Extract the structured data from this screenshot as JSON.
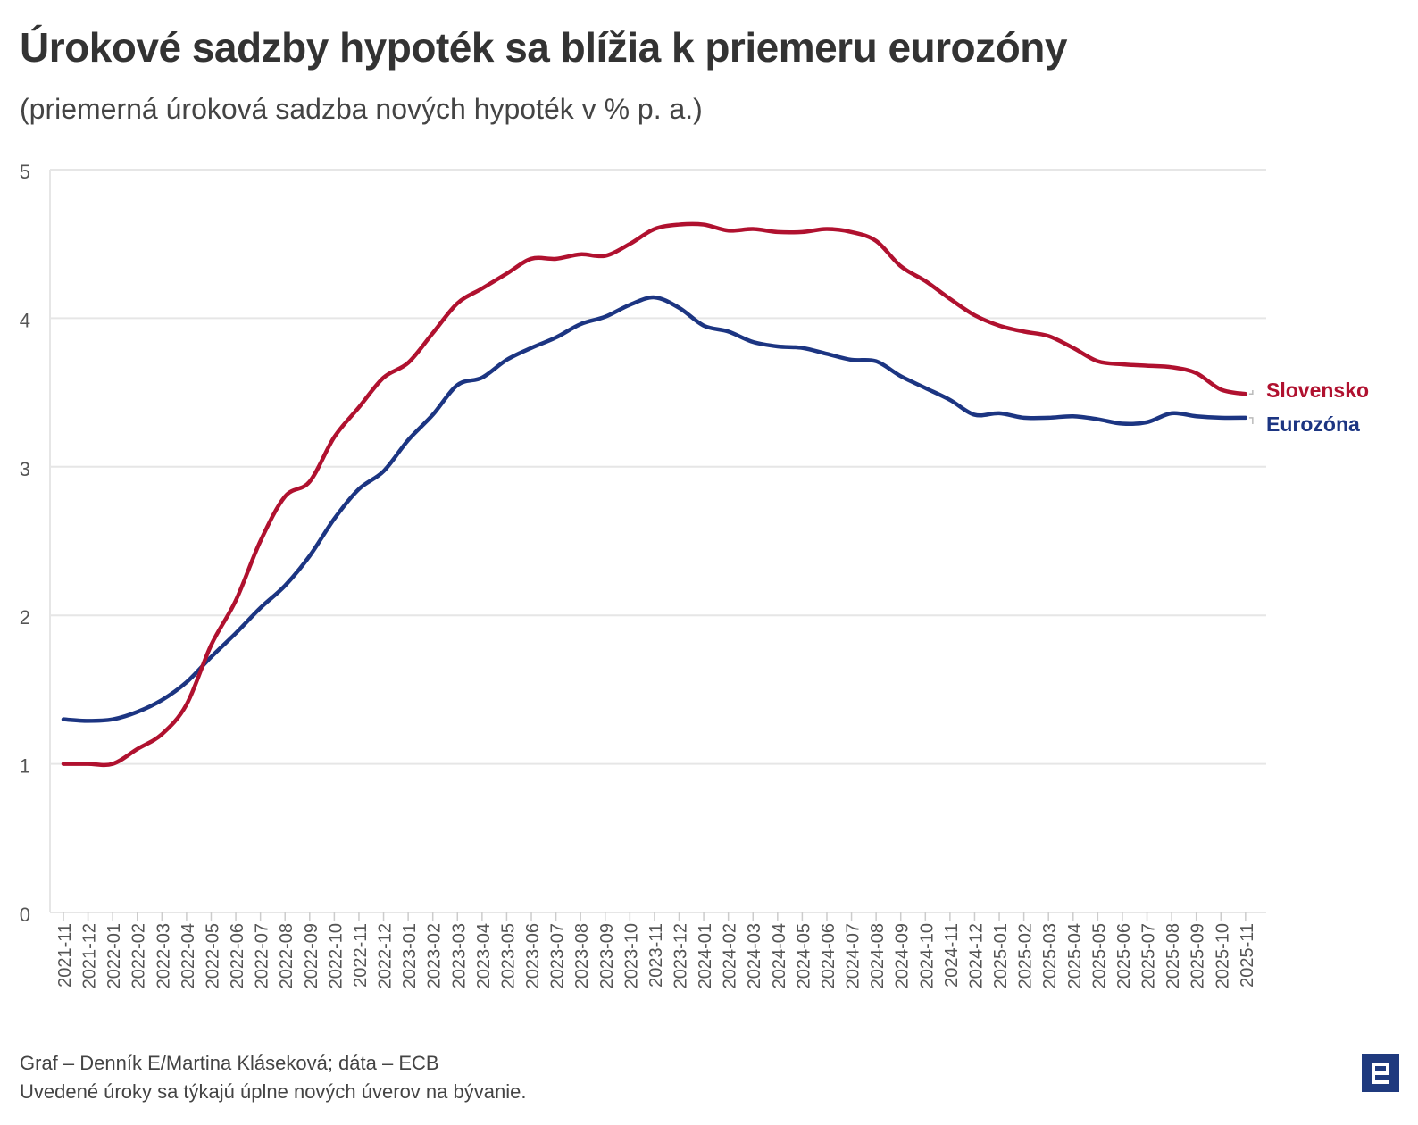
{
  "title": "Úrokové sadzby hypoték sa blížia k priemeru eurozóny",
  "subtitle": "(priemerná úroková sadzba nových hypoték v % p. a.)",
  "footer": {
    "source": "Graf – Denník E/Martina Kláseková; dáta – ECB",
    "note": "Uvedené úroky sa týkajú úplne nových úverov na bývanie."
  },
  "colors": {
    "slovensko": "#b0112f",
    "eurozona": "#1c3582",
    "grid": "#e6e6e6",
    "axis_text": "#555555",
    "logo": "#1f3a7e"
  },
  "chart_data": {
    "type": "line",
    "title": "Úrokové sadzby hypoték sa blížia k priemeru eurozóny",
    "xlabel": "",
    "ylabel": "",
    "ylim": [
      0,
      5
    ],
    "yticks": [
      0,
      1,
      2,
      3,
      4,
      5
    ],
    "grid": true,
    "legend": "inline labels at line ends (right)",
    "categories": [
      "2021-11",
      "2021-12",
      "2022-01",
      "2022-02",
      "2022-03",
      "2022-04",
      "2022-05",
      "2022-06",
      "2022-07",
      "2022-08",
      "2022-09",
      "2022-10",
      "2022-11",
      "2022-12",
      "2023-01",
      "2023-02",
      "2023-03",
      "2023-04",
      "2023-05",
      "2023-06",
      "2023-07",
      "2023-08",
      "2023-09",
      "2023-10",
      "2023-11",
      "2023-12",
      "2024-01",
      "2024-02",
      "2024-03",
      "2024-04",
      "2024-05",
      "2024-06",
      "2024-07",
      "2024-08",
      "2024-09",
      "2024-10",
      "2024-11",
      "2024-12",
      "2025-01",
      "2025-02",
      "2025-03",
      "2025-04",
      "2025-05",
      "2025-06",
      "2025-07",
      "2025-08",
      "2025-09",
      "2025-10",
      "2025-11"
    ],
    "series": [
      {
        "name": "Slovensko",
        "color": "#b0112f",
        "values": [
          1.0,
          1.0,
          1.0,
          1.1,
          1.2,
          1.4,
          1.8,
          2.1,
          2.5,
          2.8,
          2.9,
          3.2,
          3.4,
          3.6,
          3.7,
          3.9,
          4.1,
          4.2,
          4.3,
          4.4,
          4.4,
          4.43,
          4.42,
          4.5,
          4.6,
          4.63,
          4.63,
          4.59,
          4.6,
          4.58,
          4.58,
          4.6,
          4.58,
          4.52,
          4.35,
          4.25,
          4.13,
          4.02,
          3.95,
          3.91,
          3.88,
          3.8,
          3.71,
          3.69,
          3.68,
          3.67,
          3.63,
          3.52,
          3.49
        ]
      },
      {
        "name": "Eurozóna",
        "color": "#1c3582",
        "values": [
          1.3,
          1.29,
          1.3,
          1.35,
          1.43,
          1.55,
          1.72,
          1.88,
          2.05,
          2.2,
          2.4,
          2.65,
          2.85,
          2.97,
          3.18,
          3.35,
          3.55,
          3.6,
          3.72,
          3.8,
          3.87,
          3.96,
          4.01,
          4.09,
          4.14,
          4.07,
          3.95,
          3.91,
          3.84,
          3.81,
          3.8,
          3.76,
          3.72,
          3.71,
          3.61,
          3.53,
          3.45,
          3.35,
          3.36,
          3.33,
          3.33,
          3.34,
          3.32,
          3.29,
          3.3,
          3.36,
          3.34,
          3.33,
          3.33
        ]
      }
    ]
  }
}
